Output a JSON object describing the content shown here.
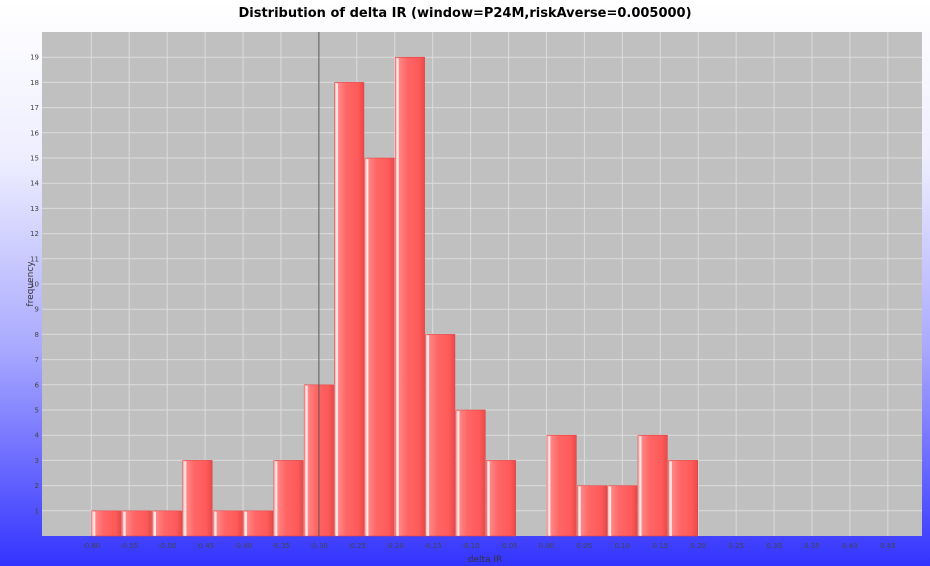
{
  "chart_data": {
    "type": "bar",
    "title": "Distribution of delta IR (window=P24M,riskAverse=0.005000)",
    "xlabel": "delta IR",
    "ylabel": "frequency",
    "ylim": [
      0,
      20
    ],
    "y_ticks": [
      1,
      2,
      3,
      4,
      5,
      6,
      7,
      8,
      9,
      10,
      11,
      12,
      13,
      14,
      15,
      16,
      17,
      18,
      19
    ],
    "x_tick_labels": [
      "-0.60",
      "-0.55",
      "-0.50",
      "-0.45",
      "-0.40",
      "-0.35",
      "-0.30",
      "-0.25",
      "-0.20",
      "-0.15",
      "-0.10",
      "-0.05",
      "0.00",
      "0.05",
      "0.10",
      "0.15",
      "0.20",
      "0.25",
      "0.30",
      "0.35",
      "0.40",
      "0.45"
    ],
    "bin_start": -0.6,
    "bin_width": 0.04,
    "values": [
      1,
      1,
      1,
      3,
      1,
      1,
      3,
      6,
      18,
      15,
      19,
      8,
      5,
      3,
      0,
      4,
      2,
      2,
      4,
      3
    ],
    "xlim": [
      -0.665,
      0.495
    ],
    "reference_line_x": -0.3,
    "grid": true,
    "colors": {
      "bar_fill": "#ff6666",
      "bar_highlight": "#ffd6d6",
      "bar_edge": "#e04444",
      "plot_background": "#c0c0c0",
      "grid": "#dcdcdc",
      "reference_line": "#555555",
      "frame_gradient_top": "#ffffff",
      "frame_gradient_bottom": "#3333ff"
    }
  }
}
